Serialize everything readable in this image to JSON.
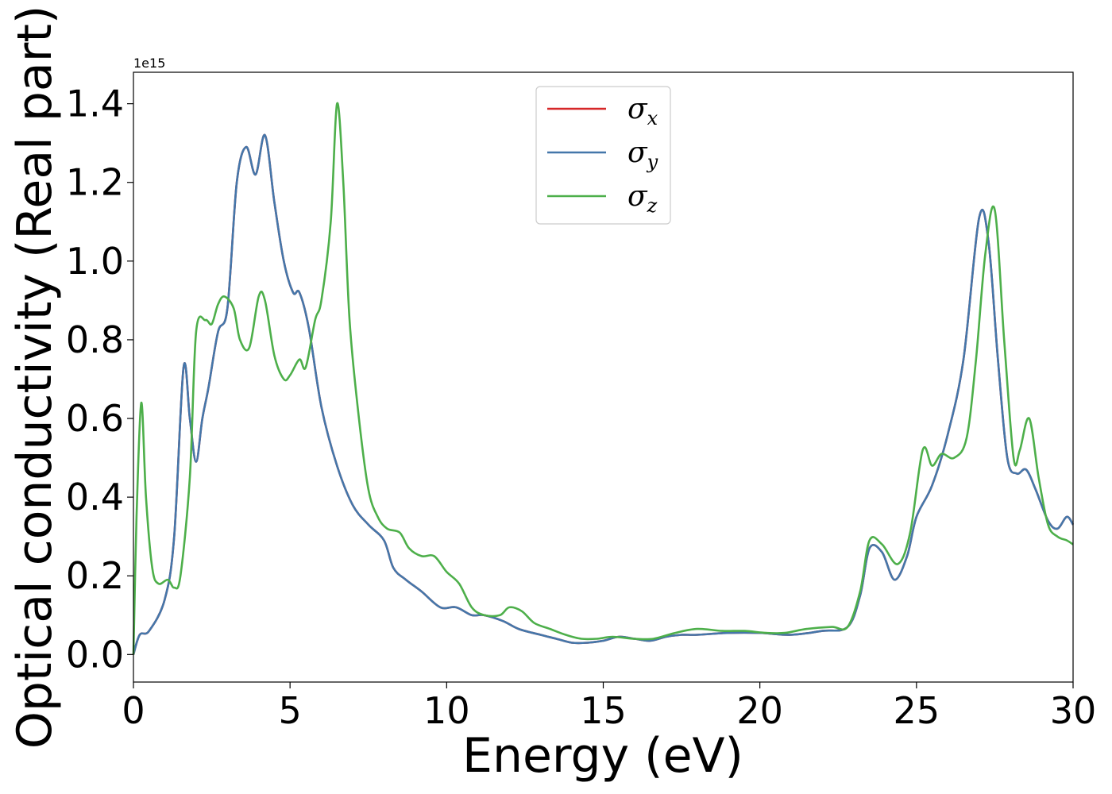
{
  "chart_data": {
    "type": "line",
    "title": "",
    "xlabel": "Energy (eV)",
    "ylabel": "Optical conductivity (Real part)",
    "y_offset_label": "1e15",
    "xlim": [
      0,
      30
    ],
    "ylim": [
      -0.07,
      1.48
    ],
    "xticks": [
      0,
      5,
      10,
      15,
      20,
      25,
      30
    ],
    "xtick_labels": [
      "0",
      "5",
      "10",
      "15",
      "20",
      "25",
      "30"
    ],
    "yticks": [
      0.0,
      0.2,
      0.4,
      0.6,
      0.8,
      1.0,
      1.2,
      1.4
    ],
    "ytick_labels": [
      "0.0",
      "0.2",
      "0.4",
      "0.6",
      "0.8",
      "1.0",
      "1.2",
      "1.4"
    ],
    "grid": false,
    "legend_position": "top-center",
    "series": [
      {
        "name": "σx",
        "legend_symbol": "σ",
        "legend_sub": "x",
        "color": "#d62728",
        "points": [
          [
            0,
            0
          ],
          [
            0.2,
            0.05
          ],
          [
            0.5,
            0.06
          ],
          [
            1.0,
            0.14
          ],
          [
            1.3,
            0.3
          ],
          [
            1.6,
            0.73
          ],
          [
            1.8,
            0.6
          ],
          [
            2.0,
            0.49
          ],
          [
            2.2,
            0.6
          ],
          [
            2.4,
            0.68
          ],
          [
            2.7,
            0.82
          ],
          [
            3.0,
            0.88
          ],
          [
            3.3,
            1.2
          ],
          [
            3.6,
            1.29
          ],
          [
            3.9,
            1.22
          ],
          [
            4.2,
            1.32
          ],
          [
            4.5,
            1.15
          ],
          [
            4.8,
            1.0
          ],
          [
            5.1,
            0.92
          ],
          [
            5.3,
            0.92
          ],
          [
            5.6,
            0.83
          ],
          [
            6.0,
            0.63
          ],
          [
            6.5,
            0.48
          ],
          [
            7.0,
            0.38
          ],
          [
            7.5,
            0.33
          ],
          [
            8.0,
            0.29
          ],
          [
            8.3,
            0.22
          ],
          [
            8.7,
            0.19
          ],
          [
            9.2,
            0.16
          ],
          [
            9.8,
            0.12
          ],
          [
            10.3,
            0.12
          ],
          [
            10.8,
            0.1
          ],
          [
            11.2,
            0.1
          ],
          [
            11.8,
            0.085
          ],
          [
            12.3,
            0.065
          ],
          [
            13.0,
            0.05
          ],
          [
            13.5,
            0.04
          ],
          [
            14.0,
            0.03
          ],
          [
            14.5,
            0.03
          ],
          [
            15.0,
            0.035
          ],
          [
            15.5,
            0.045
          ],
          [
            16.0,
            0.04
          ],
          [
            16.5,
            0.035
          ],
          [
            17.0,
            0.045
          ],
          [
            17.5,
            0.05
          ],
          [
            18.0,
            0.05
          ],
          [
            19.0,
            0.055
          ],
          [
            20.0,
            0.055
          ],
          [
            21.0,
            0.05
          ],
          [
            22.0,
            0.06
          ],
          [
            22.8,
            0.07
          ],
          [
            23.2,
            0.15
          ],
          [
            23.5,
            0.27
          ],
          [
            23.9,
            0.26
          ],
          [
            24.3,
            0.19
          ],
          [
            24.7,
            0.25
          ],
          [
            25.0,
            0.35
          ],
          [
            25.5,
            0.43
          ],
          [
            26.0,
            0.56
          ],
          [
            26.5,
            0.75
          ],
          [
            27.0,
            1.11
          ],
          [
            27.3,
            1.05
          ],
          [
            27.6,
            0.75
          ],
          [
            27.9,
            0.5
          ],
          [
            28.2,
            0.46
          ],
          [
            28.5,
            0.47
          ],
          [
            28.8,
            0.42
          ],
          [
            29.2,
            0.34
          ],
          [
            29.5,
            0.32
          ],
          [
            29.8,
            0.35
          ],
          [
            30.0,
            0.33
          ]
        ]
      },
      {
        "name": "σy",
        "legend_symbol": "σ",
        "legend_sub": "y",
        "color": "#4477aa",
        "points": [
          [
            0,
            0
          ],
          [
            0.2,
            0.05
          ],
          [
            0.5,
            0.06
          ],
          [
            1.0,
            0.14
          ],
          [
            1.3,
            0.3
          ],
          [
            1.6,
            0.73
          ],
          [
            1.8,
            0.6
          ],
          [
            2.0,
            0.49
          ],
          [
            2.2,
            0.6
          ],
          [
            2.4,
            0.68
          ],
          [
            2.7,
            0.82
          ],
          [
            3.0,
            0.88
          ],
          [
            3.3,
            1.2
          ],
          [
            3.6,
            1.29
          ],
          [
            3.9,
            1.22
          ],
          [
            4.2,
            1.32
          ],
          [
            4.5,
            1.15
          ],
          [
            4.8,
            1.0
          ],
          [
            5.1,
            0.92
          ],
          [
            5.3,
            0.92
          ],
          [
            5.6,
            0.83
          ],
          [
            6.0,
            0.63
          ],
          [
            6.5,
            0.48
          ],
          [
            7.0,
            0.38
          ],
          [
            7.5,
            0.33
          ],
          [
            8.0,
            0.29
          ],
          [
            8.3,
            0.22
          ],
          [
            8.7,
            0.19
          ],
          [
            9.2,
            0.16
          ],
          [
            9.8,
            0.12
          ],
          [
            10.3,
            0.12
          ],
          [
            10.8,
            0.1
          ],
          [
            11.2,
            0.1
          ],
          [
            11.8,
            0.085
          ],
          [
            12.3,
            0.065
          ],
          [
            13.0,
            0.05
          ],
          [
            13.5,
            0.04
          ],
          [
            14.0,
            0.03
          ],
          [
            14.5,
            0.03
          ],
          [
            15.0,
            0.035
          ],
          [
            15.5,
            0.045
          ],
          [
            16.0,
            0.04
          ],
          [
            16.5,
            0.035
          ],
          [
            17.0,
            0.045
          ],
          [
            17.5,
            0.05
          ],
          [
            18.0,
            0.05
          ],
          [
            19.0,
            0.055
          ],
          [
            20.0,
            0.055
          ],
          [
            21.0,
            0.05
          ],
          [
            22.0,
            0.06
          ],
          [
            22.8,
            0.07
          ],
          [
            23.2,
            0.15
          ],
          [
            23.5,
            0.27
          ],
          [
            23.9,
            0.26
          ],
          [
            24.3,
            0.19
          ],
          [
            24.7,
            0.25
          ],
          [
            25.0,
            0.35
          ],
          [
            25.5,
            0.43
          ],
          [
            26.0,
            0.56
          ],
          [
            26.5,
            0.75
          ],
          [
            27.0,
            1.11
          ],
          [
            27.3,
            1.05
          ],
          [
            27.6,
            0.75
          ],
          [
            27.9,
            0.5
          ],
          [
            28.2,
            0.46
          ],
          [
            28.5,
            0.47
          ],
          [
            28.8,
            0.42
          ],
          [
            29.2,
            0.34
          ],
          [
            29.5,
            0.32
          ],
          [
            29.8,
            0.35
          ],
          [
            30.0,
            0.33
          ]
        ]
      },
      {
        "name": "σz",
        "legend_symbol": "σ",
        "legend_sub": "z",
        "color": "#4daf4a",
        "points": [
          [
            0,
            0
          ],
          [
            0.1,
            0.35
          ],
          [
            0.25,
            0.64
          ],
          [
            0.4,
            0.4
          ],
          [
            0.6,
            0.22
          ],
          [
            0.8,
            0.18
          ],
          [
            1.1,
            0.19
          ],
          [
            1.3,
            0.17
          ],
          [
            1.5,
            0.2
          ],
          [
            1.8,
            0.45
          ],
          [
            2.0,
            0.82
          ],
          [
            2.3,
            0.85
          ],
          [
            2.5,
            0.84
          ],
          [
            2.7,
            0.89
          ],
          [
            2.9,
            0.91
          ],
          [
            3.2,
            0.88
          ],
          [
            3.4,
            0.8
          ],
          [
            3.7,
            0.78
          ],
          [
            4.0,
            0.91
          ],
          [
            4.2,
            0.9
          ],
          [
            4.5,
            0.76
          ],
          [
            4.8,
            0.7
          ],
          [
            5.0,
            0.71
          ],
          [
            5.3,
            0.75
          ],
          [
            5.5,
            0.73
          ],
          [
            5.8,
            0.85
          ],
          [
            6.0,
            0.9
          ],
          [
            6.3,
            1.1
          ],
          [
            6.5,
            1.4
          ],
          [
            6.7,
            1.2
          ],
          [
            6.9,
            0.85
          ],
          [
            7.2,
            0.6
          ],
          [
            7.5,
            0.42
          ],
          [
            7.8,
            0.35
          ],
          [
            8.1,
            0.32
          ],
          [
            8.5,
            0.31
          ],
          [
            8.8,
            0.27
          ],
          [
            9.2,
            0.25
          ],
          [
            9.6,
            0.25
          ],
          [
            10.0,
            0.21
          ],
          [
            10.4,
            0.18
          ],
          [
            10.8,
            0.12
          ],
          [
            11.2,
            0.1
          ],
          [
            11.7,
            0.1
          ],
          [
            12.0,
            0.12
          ],
          [
            12.4,
            0.11
          ],
          [
            12.8,
            0.08
          ],
          [
            13.3,
            0.065
          ],
          [
            13.8,
            0.05
          ],
          [
            14.3,
            0.04
          ],
          [
            14.8,
            0.04
          ],
          [
            15.3,
            0.045
          ],
          [
            16.0,
            0.04
          ],
          [
            16.6,
            0.04
          ],
          [
            17.3,
            0.055
          ],
          [
            18.0,
            0.065
          ],
          [
            18.8,
            0.06
          ],
          [
            19.5,
            0.06
          ],
          [
            20.2,
            0.055
          ],
          [
            20.8,
            0.055
          ],
          [
            21.5,
            0.065
          ],
          [
            22.3,
            0.07
          ],
          [
            22.8,
            0.07
          ],
          [
            23.2,
            0.16
          ],
          [
            23.5,
            0.29
          ],
          [
            23.9,
            0.28
          ],
          [
            24.4,
            0.23
          ],
          [
            24.8,
            0.31
          ],
          [
            25.2,
            0.52
          ],
          [
            25.5,
            0.48
          ],
          [
            25.8,
            0.51
          ],
          [
            26.2,
            0.5
          ],
          [
            26.6,
            0.55
          ],
          [
            26.9,
            0.75
          ],
          [
            27.2,
            1.02
          ],
          [
            27.5,
            1.13
          ],
          [
            27.8,
            0.8
          ],
          [
            28.1,
            0.5
          ],
          [
            28.3,
            0.52
          ],
          [
            28.6,
            0.6
          ],
          [
            28.9,
            0.45
          ],
          [
            29.2,
            0.33
          ],
          [
            29.5,
            0.3
          ],
          [
            29.8,
            0.29
          ],
          [
            30.0,
            0.28
          ]
        ]
      }
    ]
  }
}
